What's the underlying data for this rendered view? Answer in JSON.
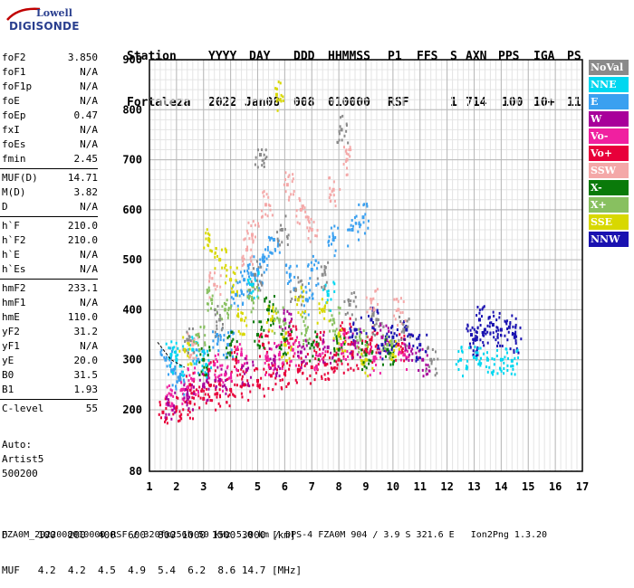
{
  "logo": {
    "line1": "Lowell",
    "line2": "DIGISONDE"
  },
  "header": {
    "labels": [
      "Station",
      "YYYY",
      "DAY",
      "DDD",
      "HHMMSS",
      "P1",
      "FFS",
      "S",
      "AXN",
      "PPS",
      "IGA",
      "PS"
    ],
    "values": [
      "Fortaleza",
      "2022",
      "Jan08",
      "008",
      "010000",
      "RSF",
      "",
      "1",
      "714",
      "100",
      "10+",
      "11"
    ]
  },
  "params": {
    "group1": [
      {
        "k": "foF2",
        "v": "3.850"
      },
      {
        "k": "foF1",
        "v": "N/A"
      },
      {
        "k": "foF1p",
        "v": "N/A"
      },
      {
        "k": "foE",
        "v": "N/A"
      },
      {
        "k": "foEp",
        "v": "0.47"
      },
      {
        "k": "fxI",
        "v": "N/A"
      },
      {
        "k": "foEs",
        "v": "N/A"
      },
      {
        "k": "fmin",
        "v": "2.45"
      }
    ],
    "group2": [
      {
        "k": "MUF(D)",
        "v": "14.71"
      },
      {
        "k": "M(D)",
        "v": "3.82"
      },
      {
        "k": "D",
        "v": "N/A"
      }
    ],
    "group3": [
      {
        "k": "h`F",
        "v": "210.0"
      },
      {
        "k": "h`F2",
        "v": "210.0"
      },
      {
        "k": "h`E",
        "v": "N/A"
      },
      {
        "k": "h`Es",
        "v": "N/A"
      }
    ],
    "group4": [
      {
        "k": "hmF2",
        "v": "233.1"
      },
      {
        "k": "hmF1",
        "v": "N/A"
      },
      {
        "k": "hmE",
        "v": "110.0"
      },
      {
        "k": "yF2",
        "v": "31.2"
      },
      {
        "k": "yF1",
        "v": "N/A"
      },
      {
        "k": "yE",
        "v": "20.0"
      },
      {
        "k": "B0",
        "v": "31.5"
      },
      {
        "k": "B1",
        "v": "1.93"
      }
    ],
    "group5": [
      {
        "k": "C-level",
        "v": "55"
      }
    ]
  },
  "auto": {
    "l1": "Auto:",
    "l2": "Artist5",
    "l3": "500200"
  },
  "legend": [
    {
      "name": "NoVal",
      "color": "#8a8a8a"
    },
    {
      "name": "NNE",
      "color": "#00d7f0"
    },
    {
      "name": "E",
      "color": "#3aa0f0"
    },
    {
      "name": "W",
      "color": "#a8009a"
    },
    {
      "name": "Vo-",
      "color": "#f020a0"
    },
    {
      "name": "Vo+",
      "color": "#e8003a"
    },
    {
      "name": "SSW",
      "color": "#f4a8a8"
    },
    {
      "name": "X-",
      "color": "#0a7a0a"
    },
    {
      "name": "X+",
      "color": "#88c060"
    },
    {
      "name": "SSE",
      "color": "#d8d800"
    },
    {
      "name": "NNW",
      "color": "#1a12b0"
    }
  ],
  "footer": {
    "line1": "D     100  200  400  600  800 1000 1500 3000 [km]",
    "line2": "MUF   4.2  4.2  4.5  4.9  5.4  6.2  8.6 14.7 [MHz]",
    "line3": "FZA0M_2022008010000.RSF / 320fx256h 50 kHz 5.0 km / DPS-4 FZA0M 904 / 3.9 S 321.6 E   Ion2Png 1.3.20"
  },
  "chart_data": {
    "type": "scatter",
    "title": "",
    "xlabel": "",
    "ylabel": "",
    "xlim": [
      1,
      17
    ],
    "ylim": [
      80,
      900
    ],
    "x_ticks": [
      1,
      2,
      3,
      4,
      5,
      6,
      7,
      8,
      9,
      10,
      11,
      12,
      13,
      14,
      15,
      16,
      17
    ],
    "y_ticks": [
      80,
      200,
      300,
      400,
      500,
      600,
      700,
      800,
      900
    ],
    "grid": true,
    "legend_position": "right",
    "series": [
      {
        "name": "Vo+",
        "points": [
          [
            1.5,
            195
          ],
          [
            2.0,
            205
          ],
          [
            2.5,
            215
          ],
          [
            3.0,
            222
          ],
          [
            3.5,
            232
          ],
          [
            4.0,
            240
          ],
          [
            4.5,
            250
          ],
          [
            5.0,
            258
          ],
          [
            5.5,
            268
          ],
          [
            6.0,
            272
          ],
          [
            6.5,
            280
          ],
          [
            7.0,
            285
          ],
          [
            7.5,
            290
          ],
          [
            8.0,
            300
          ],
          [
            8.5,
            310
          ],
          [
            9.0,
            320
          ],
          [
            2.5,
            250
          ],
          [
            3.2,
            280
          ],
          [
            4.2,
            300
          ],
          [
            5.2,
            330
          ],
          [
            6.2,
            350
          ],
          [
            7.2,
            330
          ],
          [
            8.2,
            360
          ],
          [
            9.2,
            340
          ],
          [
            10.2,
            330
          ]
        ]
      },
      {
        "name": "Vo-",
        "points": [
          [
            1.8,
            230
          ],
          [
            2.6,
            260
          ],
          [
            3.4,
            290
          ],
          [
            4.4,
            310
          ],
          [
            5.4,
            300
          ],
          [
            6.3,
            320
          ],
          [
            7.3,
            310
          ],
          [
            8.1,
            330
          ],
          [
            9.3,
            300
          ],
          [
            10.4,
            310
          ],
          [
            2.2,
            240
          ],
          [
            3.8,
            270
          ],
          [
            5.8,
            310
          ]
        ]
      },
      {
        "name": "W",
        "points": [
          [
            1.7,
            210
          ],
          [
            2.4,
            230
          ],
          [
            3.6,
            260
          ],
          [
            4.6,
            280
          ],
          [
            5.6,
            300
          ],
          [
            6.6,
            315
          ],
          [
            7.6,
            325
          ],
          [
            8.6,
            335
          ],
          [
            9.6,
            345
          ],
          [
            10.6,
            325
          ],
          [
            11.1,
            300
          ],
          [
            3.0,
            250
          ],
          [
            6.0,
            380
          ]
        ]
      },
      {
        "name": "NNW",
        "points": [
          [
            9.6,
            330
          ],
          [
            10.0,
            345
          ],
          [
            10.5,
            360
          ],
          [
            11.0,
            330
          ],
          [
            12.9,
            350
          ],
          [
            13.2,
            380
          ],
          [
            13.4,
            360
          ],
          [
            13.7,
            370
          ],
          [
            14.0,
            360
          ],
          [
            14.3,
            365
          ],
          [
            13.0,
            340
          ],
          [
            14.5,
            345
          ],
          [
            8.6,
            360
          ],
          [
            9.2,
            380
          ]
        ]
      },
      {
        "name": "E",
        "points": [
          [
            2.1,
            260
          ],
          [
            2.8,
            300
          ],
          [
            3.5,
            350
          ],
          [
            4.2,
            430
          ],
          [
            4.8,
            470
          ],
          [
            5.2,
            500
          ],
          [
            5.6,
            540
          ],
          [
            6.2,
            470
          ],
          [
            7.0,
            480
          ],
          [
            7.8,
            540
          ],
          [
            8.5,
            560
          ],
          [
            8.9,
            585
          ],
          [
            3.9,
            330
          ],
          [
            1.6,
            300
          ],
          [
            1.9,
            280
          ],
          [
            4.5,
            460
          ],
          [
            5.0,
            480
          ],
          [
            6.8,
            420
          ]
        ]
      },
      {
        "name": "NNE",
        "points": [
          [
            2.0,
            300
          ],
          [
            2.6,
            320
          ],
          [
            3.1,
            290
          ],
          [
            12.5,
            300
          ],
          [
            13.0,
            305
          ],
          [
            13.5,
            300
          ],
          [
            14.0,
            300
          ],
          [
            14.4,
            298
          ],
          [
            1.8,
            310
          ],
          [
            4.8,
            450
          ],
          [
            7.6,
            430
          ]
        ]
      },
      {
        "name": "SSE",
        "points": [
          [
            2.3,
            320
          ],
          [
            3.2,
            540
          ],
          [
            3.6,
            500
          ],
          [
            4.0,
            460
          ],
          [
            5.5,
            380
          ],
          [
            6.5,
            420
          ],
          [
            7.4,
            400
          ],
          [
            8.0,
            350
          ],
          [
            9.0,
            300
          ],
          [
            10.0,
            310
          ],
          [
            4.4,
            380
          ],
          [
            6.0,
            330
          ],
          [
            5.7,
            830
          ]
        ]
      },
      {
        "name": "SSW",
        "points": [
          [
            2.6,
            330
          ],
          [
            3.4,
            450
          ],
          [
            4.6,
            520
          ],
          [
            5.3,
            610
          ],
          [
            6.1,
            650
          ],
          [
            7.0,
            560
          ],
          [
            7.8,
            640
          ],
          [
            8.3,
            700
          ],
          [
            9.2,
            420
          ],
          [
            10.2,
            400
          ],
          [
            4.8,
            550
          ],
          [
            6.6,
            600
          ]
        ]
      },
      {
        "name": "X-",
        "points": [
          [
            3.0,
            300
          ],
          [
            4.0,
            330
          ],
          [
            5.0,
            350
          ],
          [
            6.0,
            340
          ],
          [
            7.0,
            330
          ],
          [
            8.0,
            320
          ],
          [
            9.0,
            310
          ],
          [
            9.8,
            320
          ],
          [
            5.4,
            400
          ]
        ]
      },
      {
        "name": "X+",
        "points": [
          [
            2.8,
            350
          ],
          [
            3.8,
            400
          ],
          [
            4.8,
            420
          ],
          [
            5.8,
            380
          ],
          [
            6.8,
            360
          ],
          [
            7.8,
            380
          ],
          [
            8.8,
            340
          ],
          [
            9.8,
            330
          ],
          [
            3.3,
            420
          ]
        ]
      },
      {
        "name": "NoVal",
        "points": [
          [
            2.4,
            340
          ],
          [
            3.6,
            380
          ],
          [
            4.9,
            470
          ],
          [
            6.4,
            440
          ],
          [
            7.4,
            470
          ],
          [
            8.4,
            410
          ],
          [
            9.4,
            380
          ],
          [
            10.4,
            360
          ],
          [
            11.4,
            300
          ],
          [
            5.9,
            560
          ],
          [
            8.1,
            760
          ],
          [
            5.1,
            710
          ]
        ]
      }
    ]
  }
}
